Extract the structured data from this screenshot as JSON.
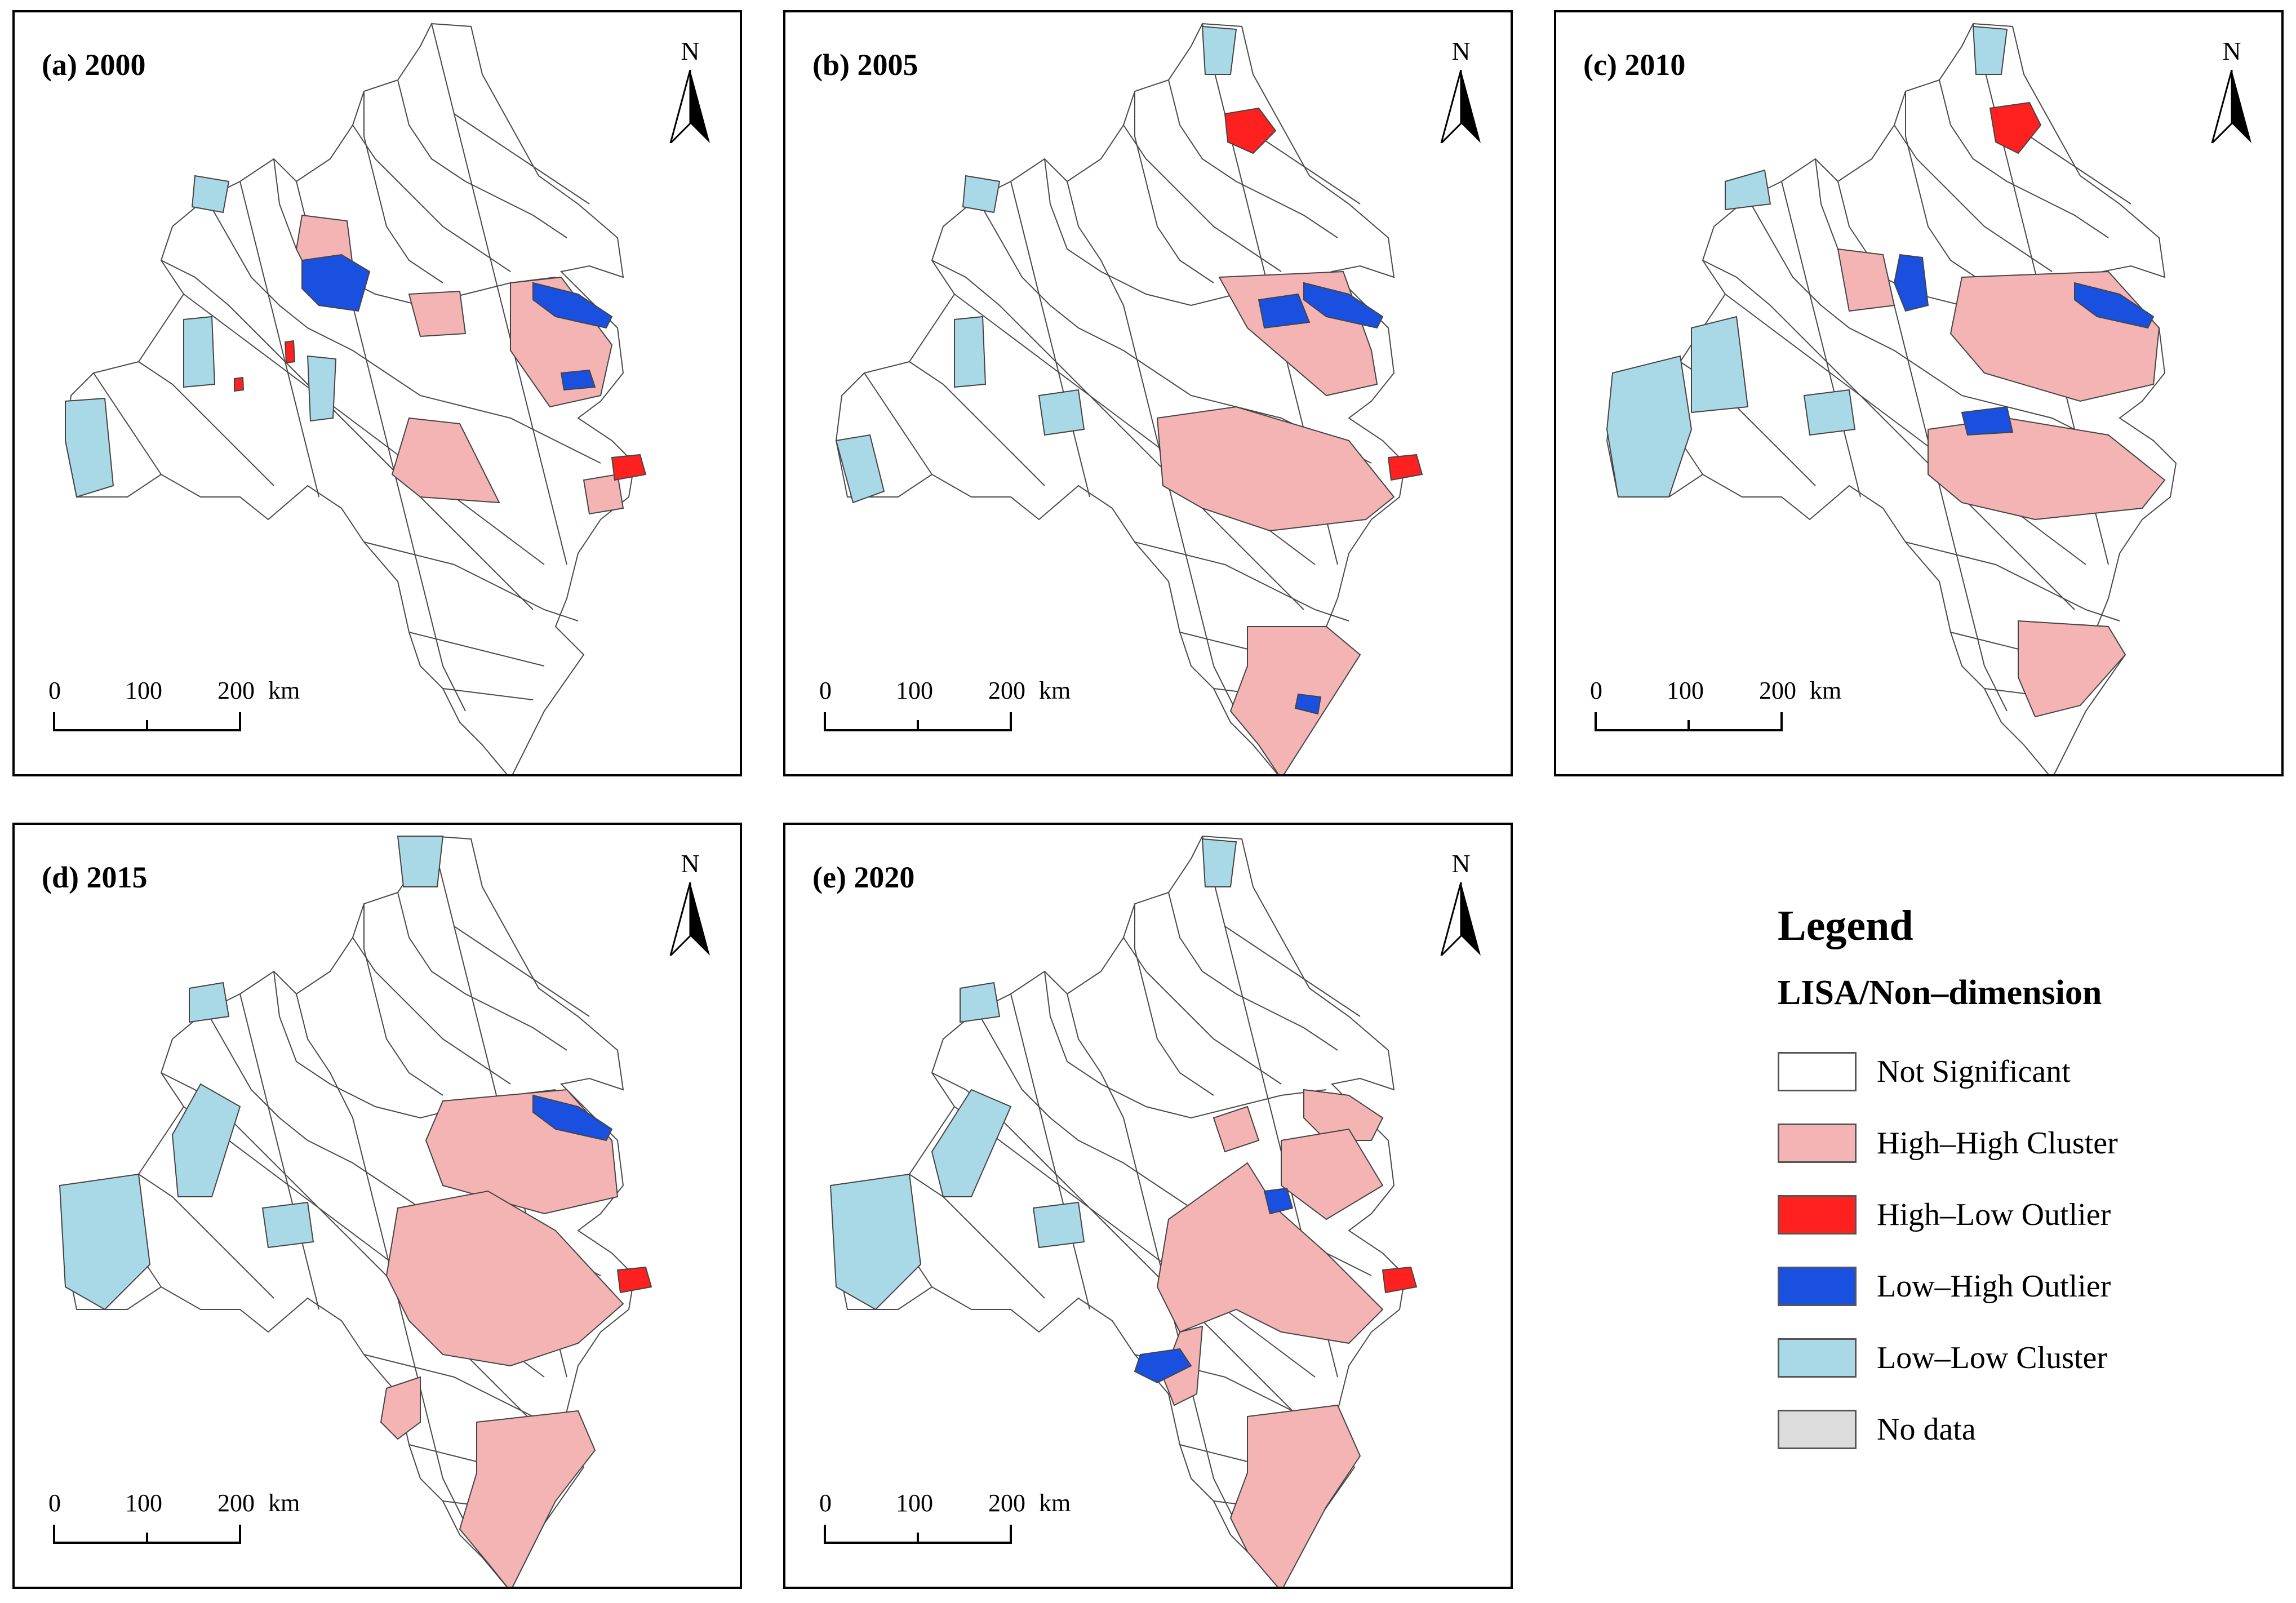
{
  "panels": [
    {
      "title": "(a) 2000"
    },
    {
      "title": "(b) 2005"
    },
    {
      "title": "(c) 2010"
    },
    {
      "title": "(d) 2015"
    },
    {
      "title": "(e) 2020"
    }
  ],
  "north_label": "N",
  "scale_bar": {
    "labels": [
      "0",
      "100",
      "200"
    ],
    "unit": "km"
  },
  "legend": {
    "title": "Legend",
    "subtitle": "LISA/Non–dimension",
    "items": [
      {
        "label": "Not Significant",
        "color": "#ffffff"
      },
      {
        "label": "High–High Cluster",
        "color": "#f4b4b4"
      },
      {
        "label": "High–Low Outlier",
        "color": "#ff2020"
      },
      {
        "label": "Low–High Outlier",
        "color": "#1950e0"
      },
      {
        "label": "Low–Low Cluster",
        "color": "#a9d8e6"
      },
      {
        "label": "No data",
        "color": "#dcdcdc"
      }
    ]
  },
  "colors": {
    "boundary": "#4a4a4a",
    "high_high": "#f4b4b4",
    "high_low": "#ff2020",
    "low_high": "#1950e0",
    "low_low": "#a9d8e6",
    "not_significant": "#ffffff"
  }
}
